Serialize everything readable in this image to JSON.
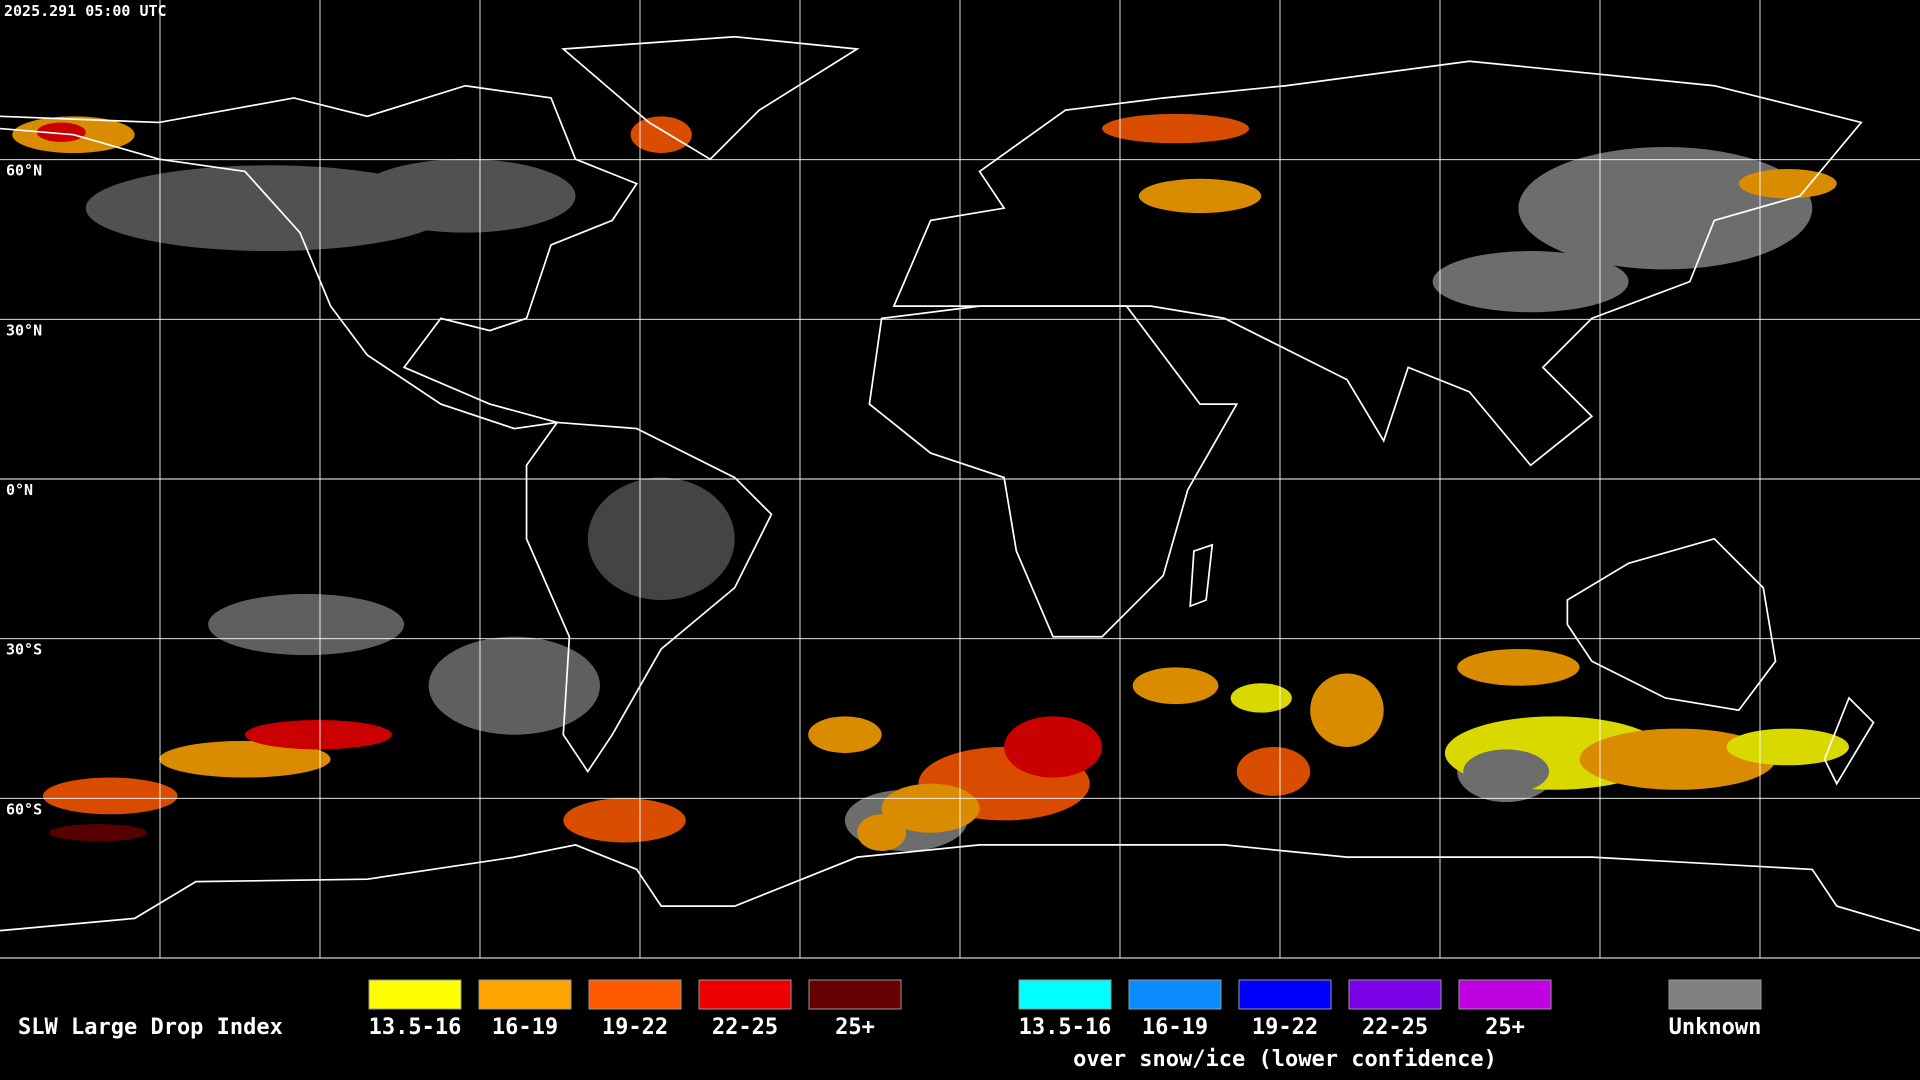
{
  "header": {
    "timestamp": "2025.291 05:00 UTC"
  },
  "map": {
    "latitude_labels": [
      "60°N",
      "30°N",
      "0°N",
      "30°S",
      "60°S"
    ]
  },
  "legend": {
    "title": "SLW Large Drop Index",
    "groups": [
      {
        "items": [
          {
            "label": "13.5-16",
            "color": "#ffff00"
          },
          {
            "label": "16-19",
            "color": "#ffa500"
          },
          {
            "label": "19-22",
            "color": "#ff5a00"
          },
          {
            "label": "22-25",
            "color": "#ee0000"
          },
          {
            "label": "25+",
            "color": "#660000"
          }
        ]
      },
      {
        "subtitle": "over snow/ice (lower confidence)",
        "items": [
          {
            "label": "13.5-16",
            "color": "#00ffff"
          },
          {
            "label": "16-19",
            "color": "#0a8cff"
          },
          {
            "label": "19-22",
            "color": "#0000ff"
          },
          {
            "label": "22-25",
            "color": "#7a00e6"
          },
          {
            "label": "25+",
            "color": "#c000e0"
          }
        ]
      }
    ],
    "unknown": {
      "label": "Unknown",
      "color": "#808080"
    }
  }
}
